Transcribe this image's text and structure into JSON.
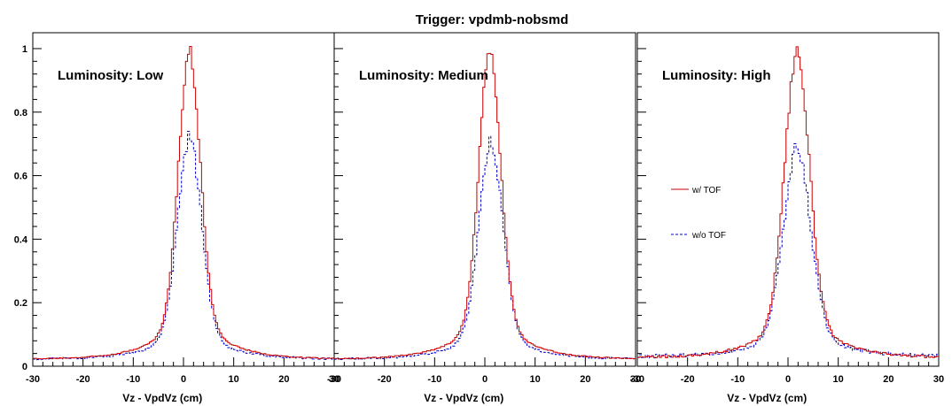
{
  "title": "Trigger: vpdmb-nobsmd",
  "colors": {
    "with_tof": "#cc0000",
    "without_tof": "#0000cc"
  },
  "chart_data": {
    "type": "line",
    "style": "step-histogram",
    "title": "Trigger: vpdmb-nobsmd",
    "xlabel": "Vz - VpdVz (cm)",
    "ylabel": "",
    "xlim": [
      -30,
      30
    ],
    "ylim": [
      0,
      1.05
    ],
    "xticks": [
      "-30",
      "-20",
      "-10",
      "0",
      "10",
      "20",
      "30"
    ],
    "yticks": [
      "0",
      "0.2",
      "0.4",
      "0.6",
      "0.8",
      "1"
    ],
    "legend": {
      "placement": "center-right of third panel",
      "entries": [
        {
          "label": "w/ TOF",
          "line": "solid",
          "color": "#cc0000"
        },
        {
          "label": "w/o TOF",
          "line": "dashed",
          "color": "#0000cc"
        }
      ]
    },
    "panels": [
      {
        "label": "Luminosity: Low",
        "series": [
          {
            "name": "w/ TOF",
            "peak": 1.0,
            "mean": 1.2,
            "sigma": 2.2,
            "tail_amp": 0.17,
            "tail_width": 6.5,
            "baseline": 0.022,
            "noise": 0.002
          },
          {
            "name": "w/o TOF",
            "peak": 0.725,
            "mean": 1.2,
            "sigma": 2.4,
            "tail_amp": 0.12,
            "tail_width": 6.5,
            "baseline": 0.022,
            "noise": 0.003
          }
        ]
      },
      {
        "label": "Luminosity: Medium",
        "series": [
          {
            "name": "w/ TOF",
            "peak": 1.0,
            "mean": 1.0,
            "sigma": 2.2,
            "tail_amp": 0.17,
            "tail_width": 6.5,
            "baseline": 0.022,
            "noise": 0.002
          },
          {
            "name": "w/o TOF",
            "peak": 0.715,
            "mean": 1.2,
            "sigma": 2.4,
            "tail_amp": 0.12,
            "tail_width": 6.5,
            "baseline": 0.022,
            "noise": 0.003
          }
        ]
      },
      {
        "label": "Luminosity: High",
        "series": [
          {
            "name": "w/ TOF",
            "peak": 1.0,
            "mean": 1.8,
            "sigma": 2.5,
            "tail_amp": 0.17,
            "tail_width": 7.0,
            "baseline": 0.026,
            "noise": 0.004
          },
          {
            "name": "w/o TOF",
            "peak": 0.695,
            "mean": 1.8,
            "sigma": 2.7,
            "tail_amp": 0.12,
            "tail_width": 7.0,
            "baseline": 0.03,
            "noise": 0.006
          }
        ]
      }
    ]
  }
}
